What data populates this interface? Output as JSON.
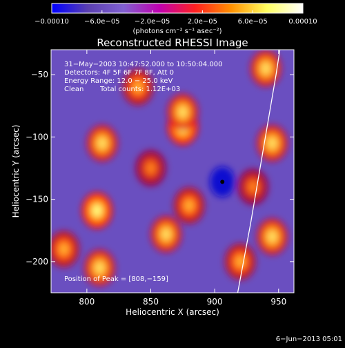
{
  "colorbar": {
    "tick_labels": [
      "−0.00010",
      "−6.0e−05",
      "−2.0e−05",
      "2.0e−05",
      "6.0e−05",
      "0.00010"
    ],
    "units": "(photons cm⁻² s⁻¹ asec⁻²)",
    "range": [
      -0.0001,
      0.0001
    ],
    "colors": [
      "#0000ff",
      "#5a3fb0",
      "#8060d0",
      "#c000b0",
      "#ff2020",
      "#ff9000",
      "#ffff60",
      "#ffffff"
    ]
  },
  "title": "Reconstructed RHESSI Image",
  "annotation": {
    "time_range": "31−May−2003 10:47:52.000 to 10:50:04.000",
    "detectors": "Detectors: 4F 5F 6F 7F 8F, Att 0",
    "energy": "Energy Range: 12.0 − 25.0 keV",
    "method": "Clean",
    "counts": "Total counts: 1.12E+03",
    "peak": "Position of Peak = [808,−159]"
  },
  "axes": {
    "xlabel": "Heliocentric X (arcsec)",
    "ylabel": "Heliocentric Y (arcsec)",
    "xlim": [
      772,
      962
    ],
    "ylim": [
      -225,
      -30
    ],
    "xticks": [
      800,
      850,
      900,
      950
    ],
    "yticks": [
      -50,
      -100,
      -150,
      -200
    ],
    "xticklabels": [
      "800",
      "850",
      "900",
      "950"
    ],
    "yticklabels": [
      "−50",
      "−100",
      "−150",
      "−200"
    ]
  },
  "footer": {
    "date": "6−Jun−2013 05:01"
  },
  "colors": {
    "background": "#000000",
    "limb": "#ffffff",
    "base": "#6a4fc0"
  },
  "chart_data": {
    "type": "heatmap",
    "title": "Reconstructed RHESSI Image",
    "xlabel": "Heliocentric X (arcsec)",
    "ylabel": "Heliocentric Y (arcsec)",
    "xlim": [
      772,
      962
    ],
    "ylim": [
      -225,
      -30
    ],
    "sources": [
      {
        "x": 940,
        "y": -45,
        "level": 0.9
      },
      {
        "x": 875,
        "y": -92,
        "level": 1.0
      },
      {
        "x": 875,
        "y": -80,
        "level": 0.85
      },
      {
        "x": 812,
        "y": -105,
        "level": 0.85
      },
      {
        "x": 808,
        "y": -159,
        "level": 1.0
      },
      {
        "x": 810,
        "y": -205,
        "level": 0.85
      },
      {
        "x": 862,
        "y": -178,
        "level": 0.8
      },
      {
        "x": 880,
        "y": -155,
        "level": 0.7
      },
      {
        "x": 945,
        "y": -180,
        "level": 0.85
      },
      {
        "x": 920,
        "y": -200,
        "level": 0.75
      },
      {
        "x": 945,
        "y": -105,
        "level": 0.8
      },
      {
        "x": 840,
        "y": -60,
        "level": 0.7
      },
      {
        "x": 782,
        "y": -190,
        "level": 0.65
      },
      {
        "x": 850,
        "y": -125,
        "level": 0.6
      },
      {
        "x": 930,
        "y": -140,
        "level": 0.55
      }
    ],
    "minimum": {
      "x": 906,
      "y": -136
    },
    "limb_arc": [
      [
        918,
        -225
      ],
      [
        928,
        -170
      ],
      [
        938,
        -110
      ],
      [
        948,
        -50
      ],
      [
        951,
        -30
      ]
    ]
  }
}
